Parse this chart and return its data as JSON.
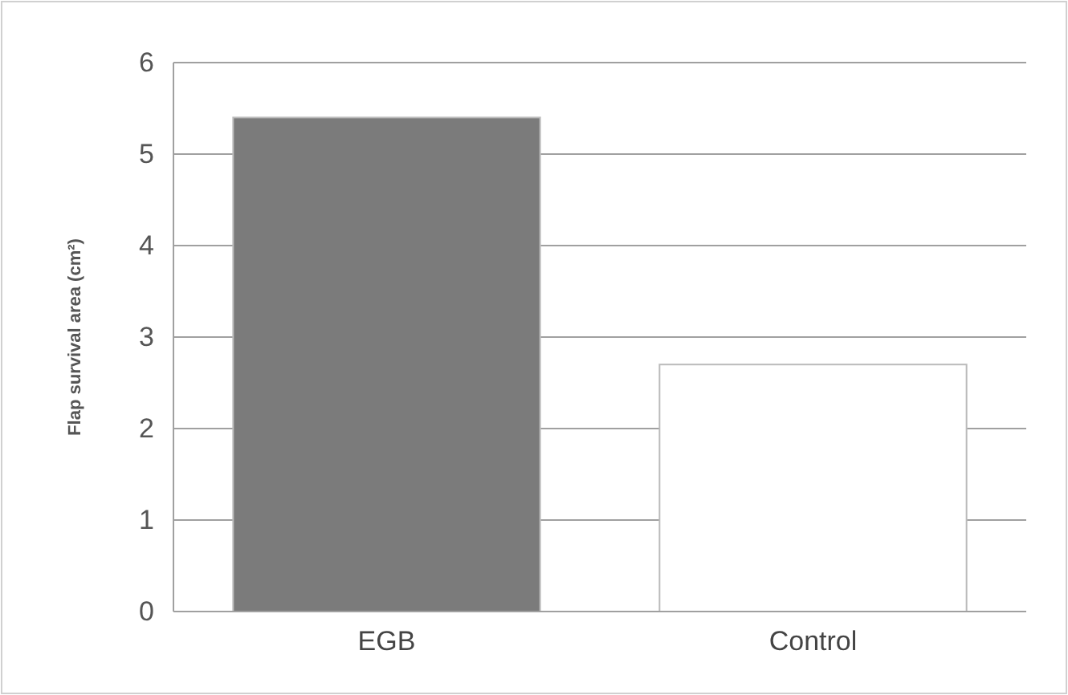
{
  "chart_data": {
    "type": "bar",
    "ylabel": "Flap survival area (cm²)",
    "categories": [
      "EGB",
      "Control"
    ],
    "values": [
      5.4,
      2.7
    ],
    "colors": [
      "#7b7b7b",
      "#ffffff"
    ],
    "ylim": [
      0,
      6
    ],
    "yticks": [
      0,
      1,
      2,
      3,
      4,
      5,
      6
    ],
    "grid": "y"
  }
}
